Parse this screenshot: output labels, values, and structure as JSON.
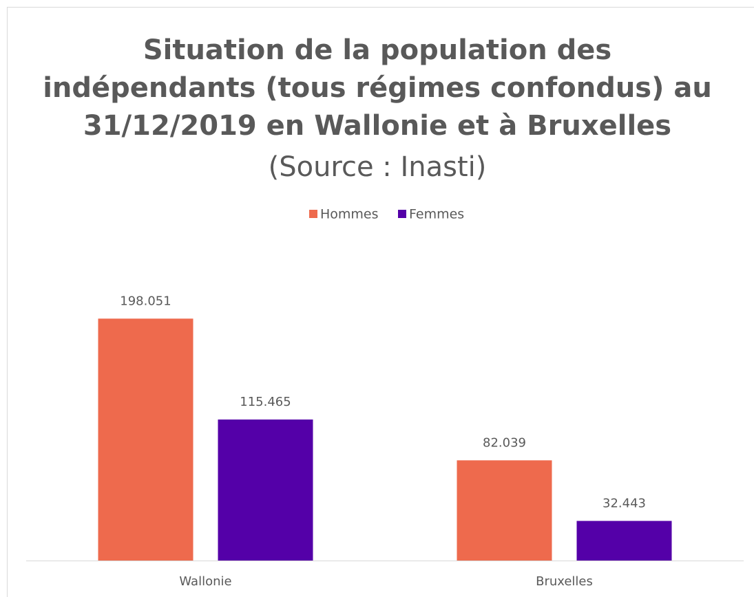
{
  "chart_data": {
    "type": "bar",
    "title": [
      "Situation de la population des",
      "indépendants (tous régimes confondus) au",
      "31/12/2019 en Wallonie et à Bruxelles"
    ],
    "subtitle": "(Source : Inasti)",
    "categories": [
      "Wallonie",
      "Bruxelles"
    ],
    "series": [
      {
        "name": "Hommes",
        "color": "#EE6A4D",
        "values": [
          198051,
          82039
        ],
        "value_labels": [
          "198.051",
          "82.039"
        ]
      },
      {
        "name": "Femmes",
        "color": "#5400A8",
        "values": [
          115465,
          32443
        ],
        "value_labels": [
          "115.465",
          "32.443"
        ]
      }
    ],
    "ylim": [
      0,
      250000
    ],
    "legend": "top"
  }
}
